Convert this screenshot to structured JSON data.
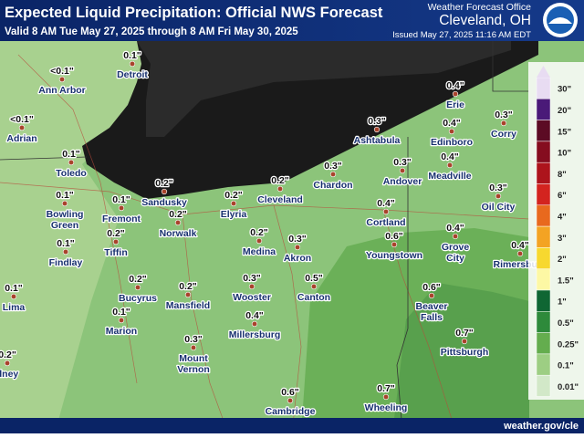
{
  "header": {
    "title": "Expected Liquid Precipitation: Official NWS Forecast",
    "subtitle": "Valid 8 AM Tue May 27, 2025 through 8 AM Fri May 30, 2025",
    "office": "Weather Forecast Office",
    "location": "Cleveland, OH",
    "issued": "Issued May 27, 2025 11:16 AM EDT"
  },
  "cities": [
    {
      "name": [
        "Ann Arbor"
      ],
      "value": "<0.1\""
    },
    {
      "name": [
        "Detroit"
      ],
      "value": "0.1\""
    },
    {
      "name": [
        "Adrian"
      ],
      "value": "<0.1\""
    },
    {
      "name": [
        "Toledo"
      ],
      "value": "0.1\""
    },
    {
      "name": [
        "Bowling",
        "Green"
      ],
      "value": "0.1\""
    },
    {
      "name": [
        "Findlay"
      ],
      "value": "0.1\""
    },
    {
      "name": [
        "Fremont"
      ],
      "value": "0.1\""
    },
    {
      "name": [
        "Sandusky"
      ],
      "value": "0.2\""
    },
    {
      "name": [
        "Norwalk"
      ],
      "value": "0.2\""
    },
    {
      "name": [
        "Tiffin"
      ],
      "value": "0.2\""
    },
    {
      "name": [
        "Lima"
      ],
      "value": "0.1\""
    },
    {
      "name": [
        "Bucyrus"
      ],
      "value": "0.2\""
    },
    {
      "name": [
        "Marion"
      ],
      "value": "0.1\""
    },
    {
      "name": [
        "Mansfield"
      ],
      "value": "0.2\""
    },
    {
      "name": [
        "Mount",
        "Vernon"
      ],
      "value": "0.3\""
    },
    {
      "name": [
        "dney"
      ],
      "value": "0.2\""
    },
    {
      "name": [
        "Elyria"
      ],
      "value": "0.2\""
    },
    {
      "name": [
        "Cleveland"
      ],
      "value": "0.2\""
    },
    {
      "name": [
        "Medina"
      ],
      "value": "0.2\""
    },
    {
      "name": [
        "Wooster"
      ],
      "value": "0.3\""
    },
    {
      "name": [
        "Millersburg"
      ],
      "value": "0.4\""
    },
    {
      "name": [
        "Akron"
      ],
      "value": "0.3\""
    },
    {
      "name": [
        "Canton"
      ],
      "value": "0.5\""
    },
    {
      "name": [
        "Chardon"
      ],
      "value": "0.3\""
    },
    {
      "name": [
        "Ashtabula"
      ],
      "value": "0.3\""
    },
    {
      "name": [
        "Andover"
      ],
      "value": "0.3\""
    },
    {
      "name": [
        "Cortland"
      ],
      "value": "0.4\""
    },
    {
      "name": [
        "Youngstown"
      ],
      "value": "0.6\""
    },
    {
      "name": [
        "Erie"
      ],
      "value": "0.4\""
    },
    {
      "name": [
        "Edinboro"
      ],
      "value": "0.4\""
    },
    {
      "name": [
        "Corry"
      ],
      "value": "0.3\""
    },
    {
      "name": [
        "Meadville"
      ],
      "value": "0.4\""
    },
    {
      "name": [
        "Oil City"
      ],
      "value": "0.3\""
    },
    {
      "name": [
        "Grove",
        "City"
      ],
      "value": "0.4\""
    },
    {
      "name": [
        "Rimersburg"
      ],
      "value": "0.4\""
    },
    {
      "name": [
        "Beaver",
        "Falls"
      ],
      "value": "0.6\""
    },
    {
      "name": [
        "Pittsburgh"
      ],
      "value": "0.7\""
    },
    {
      "name": [
        "Cambridge"
      ],
      "value": "0.6\""
    },
    {
      "name": [
        "Wheeling"
      ],
      "value": "0.7\""
    }
  ],
  "legend": [
    {
      "label": "30\"",
      "color": "#e8dcf2"
    },
    {
      "label": "20\"",
      "color": "#4a1a78"
    },
    {
      "label": "15\"",
      "color": "#5c0b24"
    },
    {
      "label": "10\"",
      "color": "#850d1f"
    },
    {
      "label": "8\"",
      "color": "#ad141c"
    },
    {
      "label": "6\"",
      "color": "#d3241f"
    },
    {
      "label": "4\"",
      "color": "#e8691e"
    },
    {
      "label": "3\"",
      "color": "#f3a323"
    },
    {
      "label": "2\"",
      "color": "#f7d82f"
    },
    {
      "label": "1.5\"",
      "color": "#fdf8a4"
    },
    {
      "label": "1\"",
      "color": "#0f6633"
    },
    {
      "label": "0.5\"",
      "color": "#2e8a3b"
    },
    {
      "label": "0.25\"",
      "color": "#64ad4e"
    },
    {
      "label": "0.1\"",
      "color": "#9dce83"
    },
    {
      "label": "0.01\"",
      "color": "#d2e8c8"
    }
  ],
  "footer": "weather.gov/cle"
}
